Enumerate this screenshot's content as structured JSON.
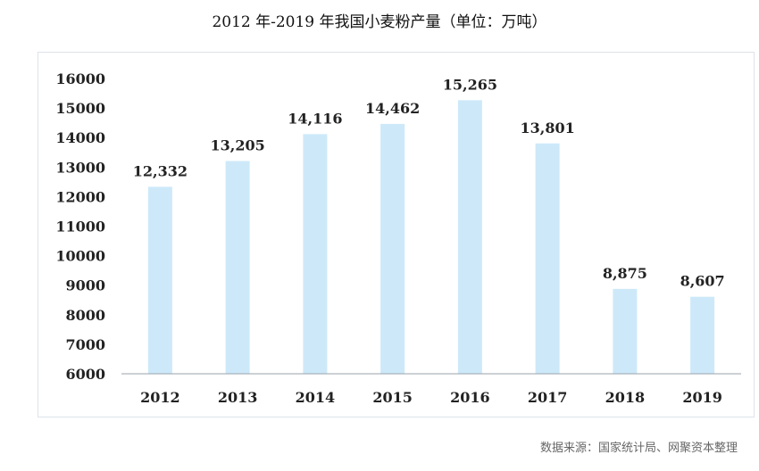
{
  "chart_data": {
    "type": "bar",
    "title": "2012 年-2019 年我国小麦粉产量（单位：万吨）",
    "categories": [
      "2012",
      "2013",
      "2014",
      "2015",
      "2016",
      "2017",
      "2018",
      "2019"
    ],
    "values": [
      12332,
      13205,
      14116,
      14462,
      15265,
      13801,
      8875,
      8607
    ],
    "value_labels": [
      "12,332",
      "13,205",
      "14,116",
      "14,462",
      "15,265",
      "13,801",
      "8,875",
      "8,607"
    ],
    "ylim": [
      6000,
      16000
    ],
    "yticks": [
      "6000",
      "7000",
      "8000",
      "9000",
      "10000",
      "11000",
      "12000",
      "13000",
      "14000",
      "15000",
      "16000"
    ],
    "bar_color": "#cde9f9",
    "grid": false,
    "legend": "none"
  },
  "source": "数据来源：国家统计局、网聚资本整理"
}
